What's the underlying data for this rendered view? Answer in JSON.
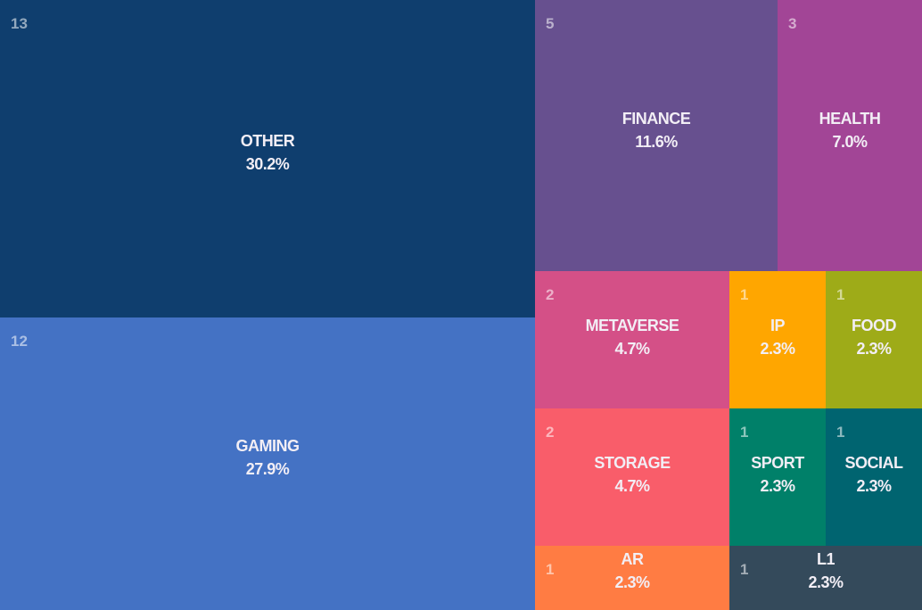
{
  "chart_data": {
    "type": "treemap",
    "items": [
      {
        "name": "OTHER",
        "percent": "30.2%",
        "count": 13,
        "color": "#0f3e6e"
      },
      {
        "name": "GAMING",
        "percent": "27.9%",
        "count": 12,
        "color": "#4472c4"
      },
      {
        "name": "FINANCE",
        "percent": "11.6%",
        "count": 5,
        "color": "#67508f"
      },
      {
        "name": "HEALTH",
        "percent": "7.0%",
        "count": 3,
        "color": "#a24596"
      },
      {
        "name": "METAVERSE",
        "percent": "4.7%",
        "count": 2,
        "color": "#d45087"
      },
      {
        "name": "IP",
        "percent": "2.3%",
        "count": 1,
        "color": "#ffa600"
      },
      {
        "name": "FOOD",
        "percent": "2.3%",
        "count": 1,
        "color": "#9eab18"
      },
      {
        "name": "STORAGE",
        "percent": "4.7%",
        "count": 2,
        "color": "#f95d6a"
      },
      {
        "name": "SPORT",
        "percent": "2.3%",
        "count": 1,
        "color": "#008069"
      },
      {
        "name": "SOCIAL",
        "percent": "2.3%",
        "count": 1,
        "color": "#006470"
      },
      {
        "name": "AR",
        "percent": "2.3%",
        "count": 1,
        "color": "#ff7c43"
      },
      {
        "name": "L1",
        "percent": "2.3%",
        "count": 1,
        "color": "#344a5b"
      }
    ]
  }
}
